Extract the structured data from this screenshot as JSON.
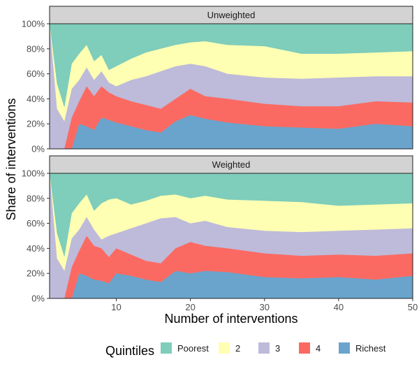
{
  "chart_data": {
    "type": "area",
    "stacking": "percent",
    "ylabel": "Share of interventions",
    "xlabel": "Number of interventions",
    "xlim": [
      1,
      50
    ],
    "ylim": [
      0,
      100
    ],
    "x_ticks": [
      10,
      20,
      30,
      40,
      50
    ],
    "y_ticks": [
      0,
      20,
      40,
      60,
      80,
      100
    ],
    "y_tick_labels": [
      "0%",
      "20%",
      "40%",
      "60%",
      "80%",
      "100%"
    ],
    "legend": {
      "title": "Quintiles",
      "position": "bottom",
      "entries": [
        {
          "name": "Poorest",
          "color": "#7fcdbb"
        },
        {
          "name": "2",
          "color": "#ffffb3"
        },
        {
          "name": "3",
          "color": "#bebada"
        },
        {
          "name": "4",
          "color": "#fb6a62"
        },
        {
          "name": "Richest",
          "color": "#6aa4cc"
        }
      ]
    },
    "panels": [
      {
        "title": "Unweighted",
        "x": [
          1,
          2,
          3,
          4,
          5,
          6,
          7,
          8,
          9,
          10,
          12,
          14,
          16,
          18,
          20,
          22,
          25,
          30,
          35,
          40,
          45,
          50
        ],
        "cumulative_boundaries": {
          "Richest": [
            0,
            0,
            0,
            0,
            20,
            18,
            15,
            25,
            23,
            21,
            18,
            15,
            13,
            22,
            27,
            24,
            21,
            18,
            17,
            16,
            20,
            18
          ],
          "4": [
            0,
            0,
            0,
            25,
            38,
            50,
            42,
            50,
            45,
            42,
            38,
            35,
            32,
            40,
            48,
            42,
            40,
            36,
            34,
            34,
            38,
            37
          ],
          "3": [
            100,
            32,
            22,
            48,
            55,
            65,
            55,
            62,
            53,
            50,
            55,
            58,
            62,
            66,
            68,
            66,
            60,
            57,
            56,
            57,
            58,
            58
          ],
          "2": [
            100,
            52,
            33,
            68,
            76,
            83,
            70,
            75,
            63,
            66,
            72,
            77,
            80,
            83,
            85,
            86,
            83,
            82,
            76,
            76,
            77,
            78
          ]
        }
      },
      {
        "title": "Weighted",
        "x": [
          1,
          2,
          3,
          4,
          5,
          6,
          7,
          8,
          9,
          10,
          12,
          14,
          16,
          18,
          20,
          22,
          25,
          30,
          35,
          40,
          45,
          50
        ],
        "cumulative_boundaries": {
          "Richest": [
            0,
            0,
            0,
            0,
            20,
            18,
            15,
            14,
            12,
            20,
            18,
            15,
            13,
            22,
            20,
            22,
            21,
            17,
            16,
            17,
            15,
            18
          ],
          "4": [
            0,
            0,
            0,
            25,
            38,
            50,
            42,
            40,
            33,
            40,
            35,
            30,
            28,
            40,
            45,
            42,
            40,
            36,
            34,
            35,
            34,
            36
          ],
          "3": [
            100,
            32,
            22,
            48,
            55,
            65,
            55,
            47,
            50,
            52,
            56,
            60,
            64,
            65,
            60,
            62,
            57,
            54,
            53,
            54,
            55,
            56
          ],
          "2": [
            100,
            52,
            33,
            68,
            76,
            83,
            70,
            76,
            79,
            80,
            75,
            78,
            82,
            83,
            80,
            82,
            79,
            78,
            77,
            74,
            75,
            76
          ]
        }
      }
    ]
  }
}
